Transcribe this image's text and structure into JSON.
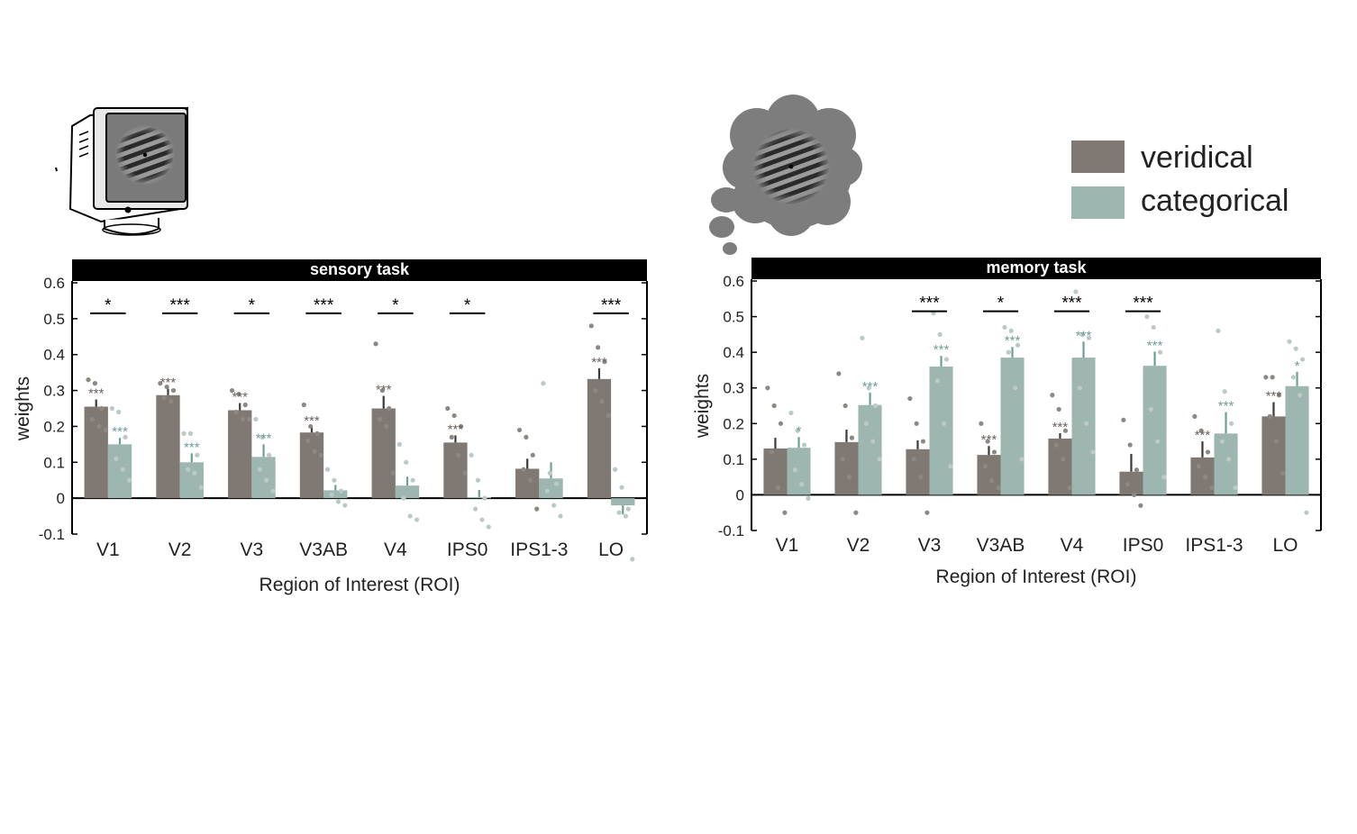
{
  "legend": {
    "items": [
      {
        "label": "veridical",
        "color": "#7f7873"
      },
      {
        "label": "categorical",
        "color": "#9eb6b0"
      }
    ],
    "placement": "top-right"
  },
  "icons": {
    "sensory": "crt-monitor-grating-icon",
    "memory": "thought-cloud-grating-icon"
  },
  "colors": {
    "veridical": "#7f7873",
    "categorical": "#9eb6b0",
    "veridical_star": "#6a6460",
    "categorical_star": "#6d9f96",
    "dot_veridical": "#8e8883",
    "dot_categorical": "#bccac6"
  },
  "chart_data": [
    {
      "type": "bar",
      "title": "sensory task",
      "xlabel": "Region of Interest (ROI)",
      "ylabel": "weights",
      "ylim": [
        -0.1,
        0.6
      ],
      "yticks": [
        "-0.1",
        "0",
        "0.1",
        "0.2",
        "0.3",
        "0.4",
        "0.5",
        "0.6"
      ],
      "categories": [
        "V1",
        "V2",
        "V3",
        "V3AB",
        "V4",
        "IPS0",
        "IPS1-3",
        "LO"
      ],
      "series": [
        {
          "name": "veridical",
          "values": [
            0.255,
            0.287,
            0.245,
            0.183,
            0.25,
            0.155,
            0.082,
            0.332
          ],
          "errors": [
            0.02,
            0.018,
            0.02,
            0.015,
            0.035,
            0.02,
            0.028,
            0.03
          ],
          "stars": [
            "***",
            "***",
            "***",
            "***",
            "***",
            "***",
            "",
            "***"
          ],
          "points": [
            [
              0.33,
              0.32,
              0.25,
              0.22,
              0.2,
              0.19
            ],
            [
              0.32,
              0.31,
              0.3,
              0.28,
              0.27
            ],
            [
              0.3,
              0.29,
              0.26,
              0.24,
              0.22,
              0.22
            ],
            [
              0.26,
              0.2,
              0.18,
              0.16,
              0.13,
              0.12
            ],
            [
              0.43,
              0.3,
              0.25,
              0.22,
              0.2,
              0.07
            ],
            [
              0.25,
              0.23,
              0.2,
              0.17,
              0.12,
              0.07
            ],
            [
              0.19,
              0.17,
              0.12,
              0.08,
              0.05,
              -0.03
            ],
            [
              0.48,
              0.42,
              0.38,
              0.3,
              0.27,
              0.23
            ]
          ]
        },
        {
          "name": "categorical",
          "values": [
            0.15,
            0.1,
            0.115,
            0.022,
            0.035,
            0.003,
            0.055,
            -0.02
          ],
          "errors": [
            0.018,
            0.025,
            0.035,
            0.015,
            0.025,
            0.02,
            0.045,
            0.025
          ],
          "stars": [
            "***",
            "***",
            "***",
            "",
            "",
            "",
            "",
            ""
          ],
          "points": [
            [
              0.25,
              0.24,
              0.17,
              0.11,
              0.08,
              0.05
            ],
            [
              0.18,
              0.18,
              0.12,
              0.08,
              0.07,
              0.03
            ],
            [
              0.22,
              0.17,
              0.12,
              0.08,
              0.05,
              0.02
            ],
            [
              0.08,
              0.05,
              0.02,
              0.01,
              -0.01,
              -0.02
            ],
            [
              0.15,
              0.1,
              0.05,
              0,
              -0.05,
              -0.06
            ],
            [
              0.12,
              0.05,
              0,
              -0.03,
              -0.06,
              -0.08
            ],
            [
              0.32,
              0.07,
              0.04,
              0.02,
              -0.02,
              -0.05
            ],
            [
              0.08,
              0.03,
              -0.03,
              -0.04,
              -0.05,
              -0.17
            ]
          ]
        }
      ],
      "brackets": [
        "*",
        "***",
        "*",
        "***",
        "*",
        "*",
        "",
        "***"
      ]
    },
    {
      "type": "bar",
      "title": "memory task",
      "xlabel": "Region of Interest (ROI)",
      "ylabel": "weights",
      "ylim": [
        -0.1,
        0.6
      ],
      "yticks": [
        "-0.1",
        "0",
        "0.1",
        "0.2",
        "0.3",
        "0.4",
        "0.5",
        "0.6"
      ],
      "categories": [
        "V1",
        "V2",
        "V3",
        "V3AB",
        "V4",
        "IPS0",
        "IPS1-3",
        "LO"
      ],
      "series": [
        {
          "name": "veridical",
          "values": [
            0.13,
            0.148,
            0.128,
            0.112,
            0.158,
            0.065,
            0.105,
            0.22
          ],
          "errors": [
            0.03,
            0.035,
            0.025,
            0.025,
            0.015,
            0.05,
            0.045,
            0.04
          ],
          "stars": [
            "",
            "",
            "",
            "***",
            "***",
            "",
            "***",
            "***"
          ],
          "points": [
            [
              0.3,
              0.25,
              0.2,
              0.12,
              0.02,
              -0.05
            ],
            [
              0.34,
              0.25,
              0.16,
              0.1,
              0.05,
              -0.05
            ],
            [
              0.27,
              0.2,
              0.15,
              0.1,
              0.05,
              -0.05
            ],
            [
              0.2,
              0.15,
              0.12,
              0.08,
              0.04,
              0.02
            ],
            [
              0.28,
              0.24,
              0.18,
              0.14,
              0.1,
              0.02
            ],
            [
              0.21,
              0.14,
              0.07,
              0.03,
              0,
              -0.03
            ],
            [
              0.22,
              0.18,
              0.12,
              0.08,
              0.05,
              0.02
            ],
            [
              0.33,
              0.33,
              0.28,
              0.22,
              0.15,
              0.06
            ]
          ]
        },
        {
          "name": "categorical",
          "values": [
            0.132,
            0.252,
            0.36,
            0.385,
            0.385,
            0.362,
            0.172,
            0.305
          ],
          "errors": [
            0.03,
            0.035,
            0.03,
            0.03,
            0.045,
            0.04,
            0.06,
            0.04
          ],
          "stars": [
            "*",
            "***",
            "***",
            "***",
            "***",
            "***",
            "***",
            "*"
          ],
          "points": [
            [
              0.23,
              0.18,
              0.14,
              0.07,
              0.03,
              -0.01
            ],
            [
              0.44,
              0.3,
              0.25,
              0.2,
              0.15,
              0.1
            ],
            [
              0.51,
              0.45,
              0.38,
              0.32,
              0.2,
              0.08
            ],
            [
              0.47,
              0.46,
              0.42,
              0.4,
              0.3,
              0.1
            ],
            [
              0.57,
              0.45,
              0.44,
              0.3,
              0.2,
              0.12
            ],
            [
              0.5,
              0.47,
              0.4,
              0.24,
              0.15,
              0.05
            ],
            [
              0.46,
              0.29,
              0.2,
              0.15,
              0.1,
              0.02
            ],
            [
              0.43,
              0.41,
              0.38,
              0.33,
              0.28,
              -0.05
            ]
          ]
        }
      ],
      "brackets": [
        "",
        "",
        "***",
        "*",
        "***",
        "***",
        "",
        ""
      ]
    }
  ]
}
